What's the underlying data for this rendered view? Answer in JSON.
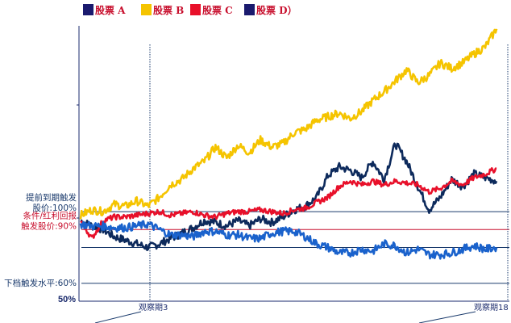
{
  "legend": [
    {
      "label": "股票 A",
      "swatch": "#1a1a6e"
    },
    {
      "label": "股票 B",
      "swatch": "#f5c400"
    },
    {
      "label": "股票 C",
      "swatch": "#e8102a"
    },
    {
      "label": "股票 D）",
      "swatch": "#1a1a6e"
    }
  ],
  "levels": [
    {
      "line1": "提前到期触发",
      "line2": "股价:100%",
      "value": 100,
      "color": "#1a3a6c"
    },
    {
      "line1": "条件/红利回报",
      "line2": "触发股价:90%",
      "value": 90,
      "color": "#c8102e"
    },
    {
      "line1": "",
      "line2": "",
      "value": 80,
      "color": "#1a3a6c"
    },
    {
      "line1": "下档触发水平:60%",
      "line2": "",
      "value": 60,
      "color": "#1a3a6c"
    }
  ],
  "y_bottom_label": "50%",
  "observations": [
    {
      "label": "观察期3",
      "position": 3
    },
    {
      "label": "观察期18",
      "position": 18
    }
  ],
  "chart_data": {
    "type": "line",
    "ylim": [
      50,
      210
    ],
    "xlim": [
      0,
      19
    ],
    "series": [
      {
        "name": "股票 A",
        "color": "#0d2a5c",
        "x": [
          0,
          0.5,
          1,
          1.5,
          2,
          2.5,
          3,
          3.5,
          4,
          4.5,
          5,
          5.5,
          6,
          6.5,
          7,
          7.5,
          8,
          8.5,
          9,
          9.5,
          10,
          10.5,
          11,
          11.5,
          12,
          12.5,
          13,
          13.5,
          14,
          14.5,
          15,
          15.5,
          16,
          16.5,
          17,
          17.5,
          18,
          18.5
        ],
        "y": [
          95,
          92,
          90,
          86,
          84,
          82,
          80,
          82,
          85,
          88,
          91,
          95,
          94,
          92,
          95,
          92,
          96,
          94,
          97,
          101,
          103,
          108,
          120,
          125,
          123,
          119,
          128,
          118,
          138,
          128,
          114,
          101,
          108,
          118,
          114,
          121,
          119,
          117
        ]
      },
      {
        "name": "股票 B",
        "color": "#f5c400",
        "x": [
          0,
          0.5,
          1,
          1.5,
          2,
          2.5,
          3,
          3.5,
          4,
          4.5,
          5,
          5.5,
          6,
          6.5,
          7,
          7.5,
          8,
          8.5,
          9,
          9.5,
          10,
          10.5,
          11,
          11.5,
          12,
          12.5,
          13,
          13.5,
          14,
          14.5,
          15,
          15.5,
          16,
          16.5,
          17,
          17.5,
          18,
          18.5
        ],
        "y": [
          98,
          101,
          100,
          104,
          103,
          106,
          103,
          108,
          115,
          118,
          124,
          128,
          136,
          130,
          137,
          133,
          140,
          136,
          138,
          144,
          146,
          151,
          153,
          155,
          152,
          156,
          162,
          167,
          173,
          179,
          172,
          176,
          183,
          180,
          183,
          188,
          192,
          202
        ]
      },
      {
        "name": "股票 C",
        "color": "#e8102a",
        "x": [
          0,
          0.5,
          1,
          1.5,
          2,
          2.5,
          3,
          3.5,
          4,
          4.5,
          5,
          5.5,
          6,
          6.5,
          7,
          7.5,
          8,
          8.5,
          9,
          9.5,
          10,
          10.5,
          11,
          11.5,
          12,
          12.5,
          13,
          13.5,
          14,
          14.5,
          15,
          15.5,
          16,
          16.5,
          17,
          17.5,
          18,
          18.5
        ],
        "y": [
          95,
          85,
          95,
          97,
          97,
          98,
          99,
          100,
          98,
          99,
          100,
          98,
          97,
          99,
          100,
          100,
          101,
          100,
          99,
          101,
          102,
          105,
          108,
          114,
          117,
          115,
          117,
          115,
          117,
          116,
          115,
          111,
          113,
          117,
          115,
          119,
          121,
          124
        ]
      },
      {
        "name": "股票 D）",
        "color": "#1a62cc",
        "x": [
          0,
          0.5,
          1,
          1.5,
          2,
          2.5,
          3,
          3.5,
          4,
          4.5,
          5,
          5.5,
          6,
          6.5,
          7,
          7.5,
          8,
          8.5,
          9,
          9.5,
          10,
          10.5,
          11,
          11.5,
          12,
          12.5,
          13,
          13.5,
          14,
          14.5,
          15,
          15.5,
          16,
          16.5,
          17,
          17.5,
          18,
          18.5
        ],
        "y": [
          93,
          92,
          92,
          91,
          91,
          92,
          93,
          90,
          87,
          87,
          86,
          89,
          89,
          87,
          87,
          85,
          85,
          88,
          89,
          89,
          86,
          82,
          80,
          77,
          77,
          79,
          78,
          82,
          81,
          77,
          79,
          76,
          76,
          77,
          79,
          81,
          79,
          80
        ]
      }
    ]
  }
}
